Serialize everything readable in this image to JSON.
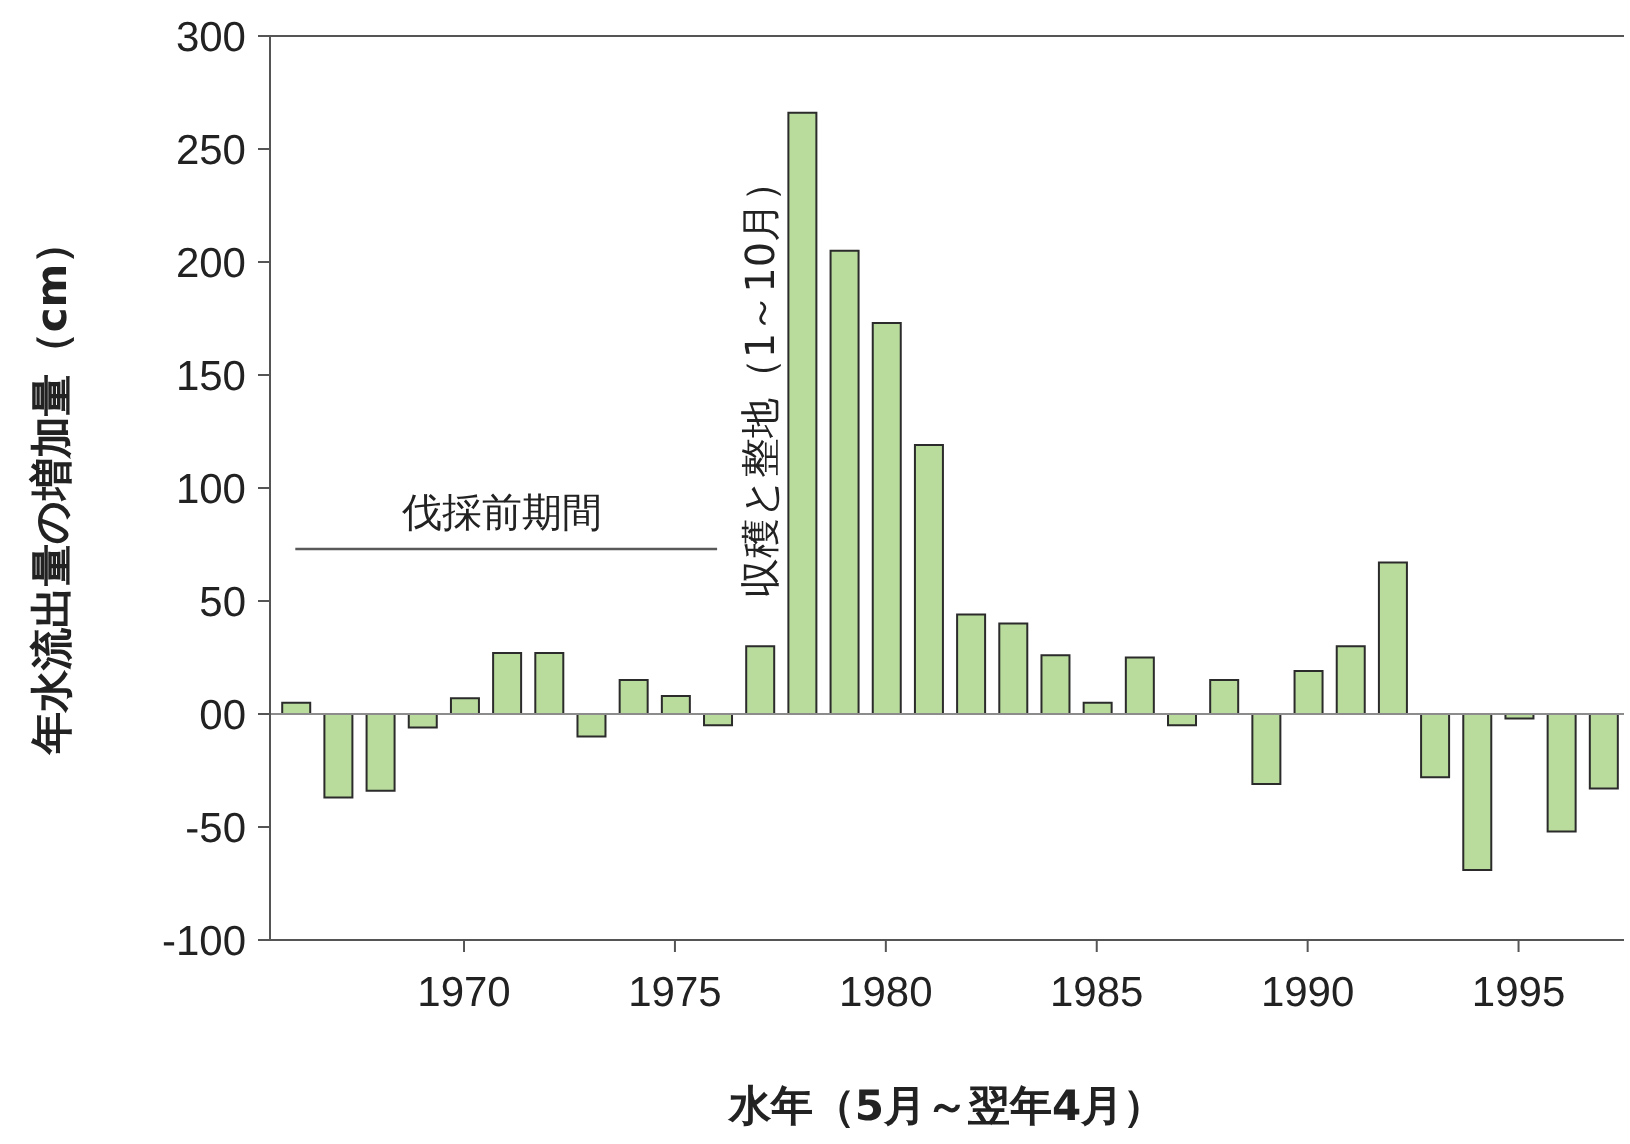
{
  "chart_data": {
    "type": "bar",
    "xlabel": "水年（5月～翌年4月）",
    "ylabel": "年水流出量の増加量（cm）",
    "x": [
      1966,
      1967,
      1968,
      1969,
      1970,
      1971,
      1972,
      1973,
      1974,
      1975,
      1976,
      1977,
      1978,
      1979,
      1980,
      1981,
      1982,
      1983,
      1984,
      1985,
      1986,
      1987,
      1988,
      1989,
      1990,
      1991,
      1992,
      1993,
      1994,
      1995,
      1996,
      1997
    ],
    "series": [
      {
        "color": "#b9dc9c",
        "values": [
          5,
          -37,
          -34,
          -6,
          7,
          27,
          27,
          -10,
          15,
          8,
          -5,
          30,
          266,
          205,
          173,
          119,
          44,
          40,
          26,
          5,
          25,
          -5,
          15,
          -31,
          19,
          30,
          67,
          -28,
          -69,
          -2,
          -52,
          -33
        ]
      },
      {
        "type": "line",
        "color": "#595959",
        "x": [
          1966,
          1976
        ],
        "values": [
          73,
          73
        ]
      }
    ],
    "xlim": [
      1965.4,
      1997.5
    ],
    "xticks": [
      1970,
      1975,
      1980,
      1985,
      1990,
      1995
    ],
    "ylim": [
      -100,
      300
    ],
    "yticks": [
      -100,
      -50,
      {
        "value": 0,
        "label": "00"
      },
      50,
      100,
      150,
      200,
      250,
      300
    ],
    "ref_lines": [
      {
        "axis": "y",
        "value": 0,
        "color": "#8c8c8c"
      }
    ],
    "annotations": [
      "伐採前期間",
      "収穫と整地（1～10月）"
    ]
  }
}
